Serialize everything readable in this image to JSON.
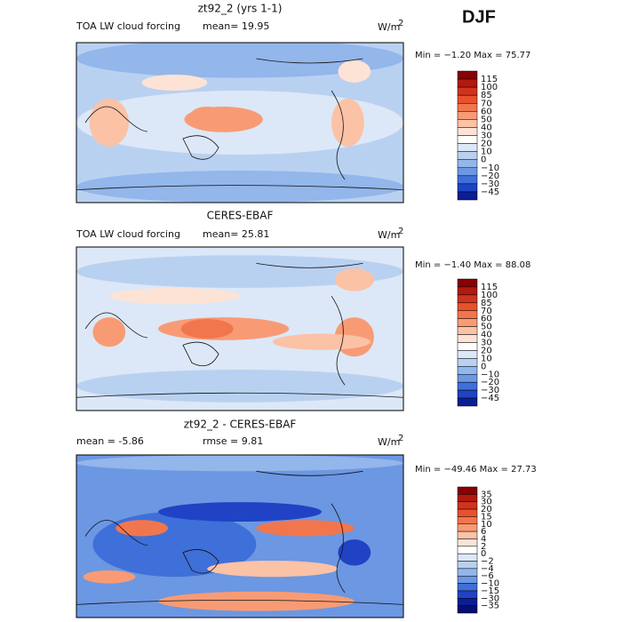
{
  "season": "DJF",
  "panels": [
    {
      "title": "zt92_2 (yrs 1-1)",
      "left_label": "TOA LW cloud forcing",
      "stat": "mean=  19.95",
      "units": "W/m",
      "units_sup": "2",
      "minmax": "Min =  −1.20 Max =  75.77",
      "colorbar": {
        "labels": [
          "115",
          "100",
          "85",
          "70",
          "60",
          "50",
          "40",
          "30",
          "20",
          "10",
          "0",
          "−10",
          "−20",
          "−30",
          "−45"
        ],
        "colors": [
          "#8b0000",
          "#b01a10",
          "#d1331d",
          "#e8512d",
          "#f2764d",
          "#f89b74",
          "#fbc2a6",
          "#fde3d6",
          "#ffffff",
          "#dce8f7",
          "#b9d1f1",
          "#93b6eb",
          "#6c97e2",
          "#3f6fd8",
          "#1f43c4",
          "#0a1e96"
        ]
      }
    },
    {
      "title": "CERES-EBAF",
      "left_label": "TOA LW cloud forcing",
      "stat": "mean=  25.81",
      "units": "W/m",
      "units_sup": "2",
      "minmax": "Min =  −1.40 Max =  88.08",
      "colorbar": {
        "labels": [
          "115",
          "100",
          "85",
          "70",
          "60",
          "50",
          "40",
          "30",
          "20",
          "10",
          "0",
          "−10",
          "−20",
          "−30",
          "−45"
        ],
        "colors": [
          "#8b0000",
          "#b01a10",
          "#d1331d",
          "#e8512d",
          "#f2764d",
          "#f89b74",
          "#fbc2a6",
          "#fde3d6",
          "#ffffff",
          "#dce8f7",
          "#b9d1f1",
          "#93b6eb",
          "#6c97e2",
          "#3f6fd8",
          "#1f43c4",
          "#0a1e96"
        ]
      }
    },
    {
      "title": "zt92_2 - CERES-EBAF",
      "stat": "mean =  -5.86",
      "stat2": "rmse =  9.81",
      "units": "W/m",
      "units_sup": "2",
      "minmax": "Min = −49.46 Max =  27.73",
      "colorbar": {
        "labels": [
          "35",
          "30",
          "20",
          "15",
          "10",
          "6",
          "4",
          "2",
          "0",
          "−2",
          "−4",
          "−6",
          "−10",
          "−15",
          "−30",
          "−35"
        ],
        "colors": [
          "#8b0000",
          "#b01a10",
          "#d1331d",
          "#e8512d",
          "#f2764d",
          "#f89b74",
          "#fbc2a6",
          "#fde3d6",
          "#ffffff",
          "#dce8f7",
          "#b9d1f1",
          "#93b6eb",
          "#6c97e2",
          "#3f6fd8",
          "#1f43c4",
          "#0a1e96",
          "#050f70"
        ]
      }
    }
  ]
}
